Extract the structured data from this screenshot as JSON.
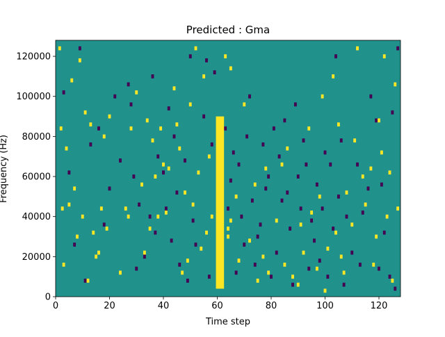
{
  "chart_data": {
    "type": "heatmap",
    "title": "Predicted : Gma",
    "xlabel": "Time step",
    "ylabel": "Frequency (Hz)",
    "xlim": [
      0,
      128
    ],
    "ylim": [
      0,
      128000
    ],
    "xticks": [
      0,
      20,
      40,
      60,
      80,
      100,
      120
    ],
    "yticks": [
      0,
      20000,
      40000,
      60000,
      80000,
      100000,
      120000
    ],
    "colors": {
      "background": "#21918c",
      "high": "#fde725",
      "low": "#440154"
    },
    "vertical_band": {
      "x": [
        59.5,
        62.5
      ],
      "y": [
        4000,
        90000
      ],
      "level": "high"
    },
    "cells_high": [
      [
        1.5,
        124000
      ],
      [
        2,
        84000
      ],
      [
        2.5,
        44000
      ],
      [
        3,
        16000
      ],
      [
        4,
        74000
      ],
      [
        5,
        46000
      ],
      [
        6,
        108000
      ],
      [
        7,
        54000
      ],
      [
        8,
        30000
      ],
      [
        9,
        118000
      ],
      [
        10,
        40000
      ],
      [
        11,
        92000
      ],
      [
        12,
        8000
      ],
      [
        13,
        86000
      ],
      [
        14,
        32000
      ],
      [
        15,
        20000
      ],
      [
        16,
        22000
      ],
      [
        17,
        44000
      ],
      [
        18,
        80000
      ],
      [
        19,
        34000
      ],
      [
        20,
        90000
      ],
      [
        24,
        12000
      ],
      [
        26,
        44000
      ],
      [
        27,
        40000
      ],
      [
        28,
        84000
      ],
      [
        30,
        102000
      ],
      [
        32,
        56000
      ],
      [
        33,
        22000
      ],
      [
        34,
        88000
      ],
      [
        35,
        34000
      ],
      [
        36,
        78000
      ],
      [
        37,
        60000
      ],
      [
        38,
        40000
      ],
      [
        39,
        84000
      ],
      [
        40,
        66000
      ],
      [
        41,
        42000
      ],
      [
        42,
        64000
      ],
      [
        44,
        104000
      ],
      [
        45,
        86000
      ],
      [
        46,
        74000
      ],
      [
        47,
        12000
      ],
      [
        48,
        52000
      ],
      [
        49,
        18000
      ],
      [
        50,
        96000
      ],
      [
        51,
        46000
      ],
      [
        52,
        124000
      ],
      [
        53,
        62000
      ],
      [
        54,
        24000
      ],
      [
        55,
        110000
      ],
      [
        56,
        32000
      ],
      [
        57,
        70000
      ],
      [
        58,
        40000
      ],
      [
        63,
        120000
      ],
      [
        64,
        30000
      ],
      [
        65,
        114000
      ],
      [
        67,
        50000
      ],
      [
        68,
        18000
      ],
      [
        70,
        96000
      ],
      [
        72,
        28000
      ],
      [
        74,
        56000
      ],
      [
        75,
        8000
      ],
      [
        77,
        20000
      ],
      [
        78,
        64000
      ],
      [
        79,
        12000
      ],
      [
        82,
        38000
      ],
      [
        84,
        66000
      ],
      [
        85,
        16000
      ],
      [
        86,
        74000
      ],
      [
        88,
        10000
      ],
      [
        90,
        6000
      ],
      [
        91,
        36000
      ],
      [
        92,
        22000
      ],
      [
        94,
        84000
      ],
      [
        95,
        42000
      ],
      [
        97,
        14000
      ],
      [
        98,
        50000
      ],
      [
        99,
        100000
      ],
      [
        100,
        3000
      ],
      [
        101,
        24000
      ],
      [
        103,
        110000
      ],
      [
        104,
        32000
      ],
      [
        105,
        86000
      ],
      [
        106,
        20000
      ],
      [
        107,
        12000
      ],
      [
        108,
        52000
      ],
      [
        110,
        36000
      ],
      [
        111,
        78000
      ],
      [
        112,
        124000
      ],
      [
        114,
        60000
      ],
      [
        115,
        46000
      ],
      [
        117,
        64000
      ],
      [
        118,
        16000
      ],
      [
        119,
        30000
      ],
      [
        120,
        88000
      ],
      [
        121,
        72000
      ],
      [
        122,
        120000
      ],
      [
        123,
        40000
      ],
      [
        124,
        62000
      ],
      [
        125,
        8000
      ],
      [
        126,
        106000
      ],
      [
        127,
        44000
      ],
      [
        64,
        34000
      ],
      [
        65,
        38000
      ]
    ],
    "cells_low": [
      [
        3,
        102000
      ],
      [
        5,
        62000
      ],
      [
        7,
        26000
      ],
      [
        9,
        124000
      ],
      [
        11,
        8000
      ],
      [
        13,
        76000
      ],
      [
        16,
        84000
      ],
      [
        18,
        36000
      ],
      [
        20,
        54000
      ],
      [
        22,
        100000
      ],
      [
        24,
        68000
      ],
      [
        27,
        106000
      ],
      [
        28,
        96000
      ],
      [
        29,
        60000
      ],
      [
        30,
        14000
      ],
      [
        31,
        46000
      ],
      [
        33,
        20000
      ],
      [
        35,
        40000
      ],
      [
        36,
        110000
      ],
      [
        37,
        32000
      ],
      [
        38,
        70000
      ],
      [
        40,
        62000
      ],
      [
        41,
        44000
      ],
      [
        42,
        94000
      ],
      [
        43,
        28000
      ],
      [
        44,
        80000
      ],
      [
        45,
        52000
      ],
      [
        46,
        16000
      ],
      [
        48,
        68000
      ],
      [
        49,
        8000
      ],
      [
        50,
        120000
      ],
      [
        51,
        38000
      ],
      [
        52,
        26000
      ],
      [
        55,
        90000
      ],
      [
        56,
        118000
      ],
      [
        57,
        10000
      ],
      [
        58,
        76000
      ],
      [
        59,
        112000
      ],
      [
        63,
        84000
      ],
      [
        64,
        44000
      ],
      [
        65,
        58000
      ],
      [
        66,
        72000
      ],
      [
        67,
        12000
      ],
      [
        68,
        66000
      ],
      [
        69,
        40000
      ],
      [
        70,
        26000
      ],
      [
        71,
        80000
      ],
      [
        72,
        100000
      ],
      [
        73,
        48000
      ],
      [
        74,
        16000
      ],
      [
        75,
        30000
      ],
      [
        76,
        36000
      ],
      [
        77,
        76000
      ],
      [
        78,
        54000
      ],
      [
        79,
        60000
      ],
      [
        80,
        10000
      ],
      [
        81,
        84000
      ],
      [
        82,
        22000
      ],
      [
        83,
        70000
      ],
      [
        84,
        48000
      ],
      [
        85,
        88000
      ],
      [
        86,
        52000
      ],
      [
        87,
        34000
      ],
      [
        88,
        6000
      ],
      [
        89,
        96000
      ],
      [
        90,
        60000
      ],
      [
        91,
        44000
      ],
      [
        92,
        78000
      ],
      [
        93,
        66000
      ],
      [
        94,
        14000
      ],
      [
        95,
        38000
      ],
      [
        96,
        28000
      ],
      [
        97,
        56000
      ],
      [
        98,
        18000
      ],
      [
        99,
        44000
      ],
      [
        100,
        72000
      ],
      [
        101,
        10000
      ],
      [
        102,
        66000
      ],
      [
        103,
        34000
      ],
      [
        104,
        120000
      ],
      [
        105,
        50000
      ],
      [
        106,
        78000
      ],
      [
        107,
        6000
      ],
      [
        108,
        40000
      ],
      [
        110,
        22000
      ],
      [
        112,
        66000
      ],
      [
        113,
        16000
      ],
      [
        114,
        42000
      ],
      [
        116,
        54000
      ],
      [
        117,
        100000
      ],
      [
        119,
        88000
      ],
      [
        120,
        14000
      ],
      [
        121,
        56000
      ],
      [
        122,
        32000
      ],
      [
        124,
        10000
      ],
      [
        125,
        92000
      ],
      [
        126,
        4000
      ],
      [
        127,
        124000
      ]
    ]
  }
}
